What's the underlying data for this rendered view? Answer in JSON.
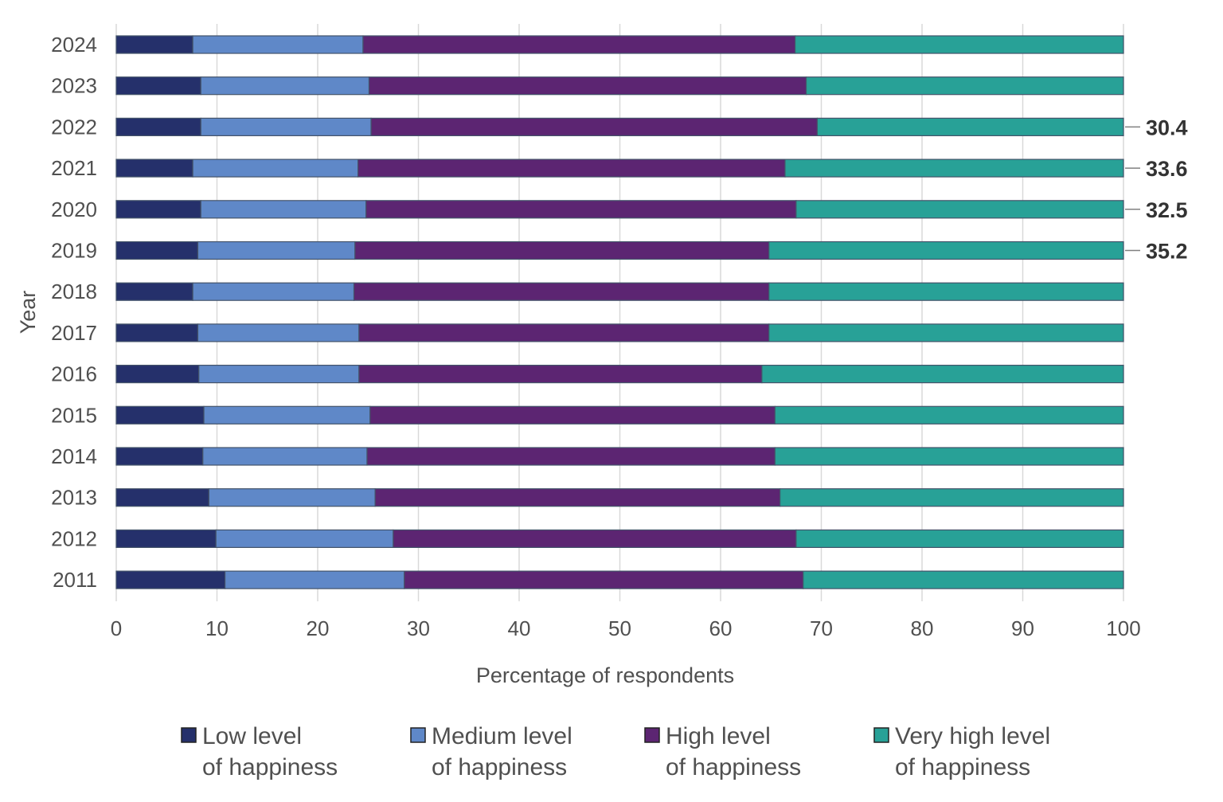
{
  "chart_data": {
    "type": "bar",
    "orientation": "horizontal",
    "stacked": true,
    "title": "",
    "xlabel": "Percentage of respondents",
    "ylabel": "Year",
    "xlim": [
      0,
      100
    ],
    "xticks": [
      "0",
      "10",
      "20",
      "30",
      "40",
      "50",
      "60",
      "70",
      "80",
      "90",
      "100"
    ],
    "grid": "vertical",
    "legend_position": "bottom",
    "categories": [
      "2024",
      "2023",
      "2022",
      "2021",
      "2020",
      "2019",
      "2018",
      "2017",
      "2016",
      "2015",
      "2014",
      "2013",
      "2012",
      "2011"
    ],
    "series": [
      {
        "name": "Low level of happiness",
        "legend_lines": [
          "Low level",
          "of happiness"
        ],
        "color": "#25306b",
        "values": [
          7.6,
          8.4,
          8.4,
          7.6,
          8.4,
          8.1,
          7.6,
          8.1,
          8.2,
          8.7,
          8.6,
          9.2,
          9.9,
          10.8
        ]
      },
      {
        "name": "Medium level of happiness",
        "legend_lines": [
          "Medium level",
          "of happiness"
        ],
        "color": "#5f88c8",
        "values": [
          16.9,
          16.7,
          16.9,
          16.4,
          16.4,
          15.6,
          16.0,
          16.0,
          15.9,
          16.5,
          16.3,
          16.5,
          17.6,
          17.8
        ]
      },
      {
        "name": "High level of happiness",
        "legend_lines": [
          "High level",
          "of happiness"
        ],
        "color": "#5c2572",
        "values": [
          42.9,
          43.4,
          44.3,
          42.4,
          42.7,
          41.1,
          41.2,
          40.7,
          40.0,
          40.2,
          40.5,
          40.2,
          40.0,
          39.6
        ]
      },
      {
        "name": "Very high level of happiness",
        "legend_lines": [
          "Very high level",
          "of happiness"
        ],
        "color": "#28a197",
        "values": [
          32.6,
          31.5,
          30.4,
          33.6,
          32.5,
          35.2,
          35.2,
          35.2,
          35.9,
          34.6,
          34.6,
          34.1,
          32.5,
          31.8
        ]
      }
    ],
    "annotations": [
      {
        "category": "2022",
        "label": "30.4"
      },
      {
        "category": "2021",
        "label": "33.6"
      },
      {
        "category": "2020",
        "label": "32.5"
      },
      {
        "category": "2019",
        "label": "35.2"
      }
    ]
  }
}
